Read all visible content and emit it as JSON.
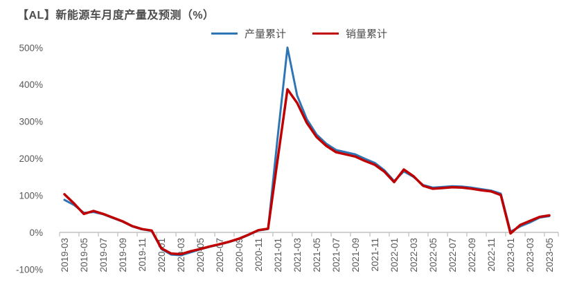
{
  "title": "【AL】新能源车月度产量及预测（%）",
  "legend": [
    {
      "label": "产量累计",
      "color": "#2E75B6"
    },
    {
      "label": "销量累计",
      "color": "#C00000"
    }
  ],
  "colors": {
    "production_line": "#2E75B6",
    "sales_line": "#C00000",
    "axis_line": "#BFBFBF",
    "axis_text": "#595959",
    "title_text": "#4D4D4D",
    "background": "#FFFFFF"
  },
  "chart_data": {
    "type": "line",
    "title": "【AL】新能源车月度产量及预测（%）",
    "xlabel": "",
    "ylabel": "",
    "grid": false,
    "legend_position": "top",
    "ylim": [
      -100,
      500
    ],
    "ytick_step": 100,
    "ytick_labels": [
      "500%",
      "400%",
      "300%",
      "200%",
      "100%",
      "0%",
      "-100%"
    ],
    "xtick_labels": [
      "2019-03",
      "2019-05",
      "2019-07",
      "2019-09",
      "2019-11",
      "2020-01",
      "2020-03",
      "2020-05",
      "2020-07",
      "2020-09",
      "2020-11",
      "2021-01",
      "2021-03",
      "2021-05",
      "2021-07",
      "2021-09",
      "2021-11",
      "2022-01",
      "2022-03",
      "2022-05",
      "2022-07",
      "2022-09",
      "2022-11",
      "2023-01",
      "2023-03",
      "2023-05"
    ],
    "x": [
      "2019-03",
      "2019-04",
      "2019-05",
      "2019-06",
      "2019-07",
      "2019-08",
      "2019-09",
      "2019-10",
      "2019-11",
      "2019-12",
      "2020-01",
      "2020-02",
      "2020-03",
      "2020-04",
      "2020-05",
      "2020-06",
      "2020-07",
      "2020-08",
      "2020-09",
      "2020-10",
      "2020-11",
      "2020-12",
      "2021-01",
      "2021-02",
      "2021-03",
      "2021-04",
      "2021-05",
      "2021-06",
      "2021-07",
      "2021-08",
      "2021-09",
      "2021-10",
      "2021-11",
      "2021-12",
      "2022-01",
      "2022-02",
      "2022-03",
      "2022-04",
      "2022-05",
      "2022-06",
      "2022-07",
      "2022-08",
      "2022-09",
      "2022-10",
      "2022-11",
      "2022-12",
      "2023-01",
      "2023-02",
      "2023-03",
      "2023-04",
      "2023-05"
    ],
    "series": [
      {
        "name": "产量累计",
        "color": "#2E75B6",
        "values": [
          88,
          74,
          53,
          55,
          49,
          39,
          29,
          16,
          8,
          4,
          -45,
          -60,
          -62,
          -54,
          -46,
          -39,
          -33,
          -26,
          -18,
          -7,
          5,
          9,
          260,
          500,
          370,
          306,
          265,
          240,
          223,
          217,
          211,
          199,
          188,
          168,
          139,
          165,
          150,
          128,
          121,
          123,
          125,
          124,
          121,
          117,
          113,
          105,
          2,
          16,
          27,
          40,
          44
        ]
      },
      {
        "name": "销量累计",
        "color": "#C00000",
        "values": [
          103,
          78,
          50,
          58,
          50,
          40,
          30,
          17,
          9,
          5,
          -43,
          -57,
          -59,
          -51,
          -45,
          -38,
          -32,
          -25,
          -17,
          -6,
          6,
          10,
          200,
          387,
          350,
          296,
          258,
          234,
          217,
          211,
          205,
          193,
          183,
          164,
          136,
          170,
          152,
          126,
          118,
          120,
          122,
          121,
          118,
          114,
          111,
          101,
          -3,
          20,
          31,
          42,
          46
        ]
      }
    ]
  }
}
